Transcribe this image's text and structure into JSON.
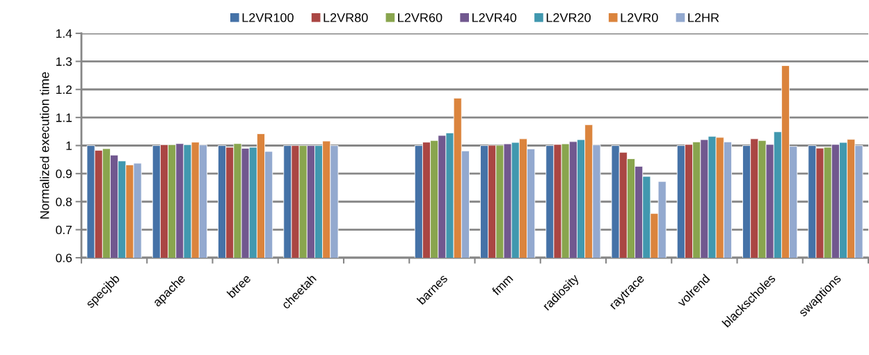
{
  "chart_data": {
    "type": "bar",
    "ylabel": "Normalized execution time",
    "categories": [
      "specjbb",
      "apache",
      "btree",
      "cheetah",
      null,
      "barnes",
      "fmm",
      "radiosity",
      "raytrace",
      "volrend",
      "blackscholes",
      "swaptions"
    ],
    "series": [
      {
        "name": "L2VR100",
        "color": "#4572a7",
        "values": [
          1.0,
          1.0,
          1.0,
          1.0,
          null,
          1.0,
          1.0,
          1.0,
          1.0,
          1.0,
          1.0,
          1.0
        ]
      },
      {
        "name": "L2VR80",
        "color": "#aa4643",
        "values": [
          0.983,
          1.003,
          0.994,
          1.0,
          null,
          1.012,
          1.001,
          1.004,
          0.976,
          1.004,
          1.024,
          0.991
        ]
      },
      {
        "name": "L2VR60",
        "color": "#89a54e",
        "values": [
          0.989,
          1.003,
          1.007,
          1.0,
          null,
          1.018,
          1.001,
          1.006,
          0.953,
          1.013,
          1.018,
          0.994
        ]
      },
      {
        "name": "L2VR40",
        "color": "#71588f",
        "values": [
          0.966,
          1.007,
          0.99,
          1.0,
          null,
          1.036,
          1.006,
          1.014,
          0.926,
          1.021,
          1.004,
          1.004
        ]
      },
      {
        "name": "L2VR20",
        "color": "#4198af",
        "values": [
          0.945,
          1.003,
          0.994,
          1.0,
          null,
          1.045,
          1.011,
          1.021,
          0.89,
          1.033,
          1.049,
          1.011
        ]
      },
      {
        "name": "L2VR0",
        "color": "#db843d",
        "values": [
          0.931,
          1.012,
          1.042,
          1.016,
          null,
          1.169,
          1.024,
          1.074,
          0.758,
          1.029,
          1.285,
          1.022
        ]
      },
      {
        "name": "L2HR",
        "color": "#93a9cf",
        "values": [
          0.937,
          1.002,
          0.979,
          1.0,
          null,
          0.981,
          0.988,
          1.002,
          0.872,
          1.013,
          0.997,
          1.0
        ]
      }
    ],
    "ylim": [
      0.6,
      1.4
    ],
    "yticks": [
      0.6,
      0.7,
      0.8,
      0.9,
      1,
      1.1,
      1.2,
      1.3,
      1.4
    ],
    "grid": "y",
    "legend": "top"
  }
}
